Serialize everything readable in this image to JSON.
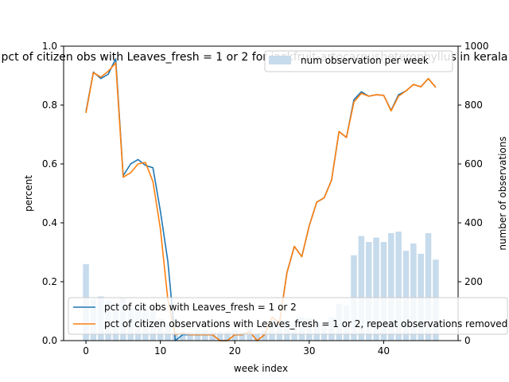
{
  "chart_data": {
    "type": "line",
    "title": "pct of citizen obs with Leaves_fresh = 1 or 2 for jackfruit-artocarpusheterophyllus in kerala",
    "xlabel": "week index",
    "ylabel": "percent",
    "y2label": "number of observations",
    "xlim": [
      -3,
      50
    ],
    "ylim": [
      0,
      1.0
    ],
    "y2lim": [
      0,
      1000
    ],
    "xticks": [
      "0",
      "10",
      "20",
      "30",
      "40"
    ],
    "yticks": [
      "0.0",
      "0.2",
      "0.4",
      "0.6",
      "0.8",
      "1.0"
    ],
    "y2ticks": [
      "0",
      "200",
      "400",
      "600",
      "800",
      "1000"
    ],
    "grid": false,
    "x": [
      0,
      1,
      2,
      3,
      4,
      5,
      6,
      7,
      8,
      9,
      10,
      11,
      12,
      13,
      14,
      15,
      16,
      17,
      18,
      19,
      20,
      21,
      22,
      23,
      24,
      25,
      26,
      27,
      28,
      29,
      30,
      31,
      32,
      33,
      34,
      35,
      36,
      37,
      38,
      39,
      40,
      41,
      42,
      43,
      44,
      45,
      46,
      47
    ],
    "bars": {
      "name": "num observation per week",
      "color": "#c6dbec",
      "values": [
        260,
        140,
        150,
        135,
        115,
        145,
        110,
        125,
        110,
        100,
        75,
        60,
        30,
        30,
        30,
        35,
        35,
        30,
        30,
        30,
        35,
        30,
        40,
        25,
        35,
        70,
        55,
        70,
        60,
        80,
        75,
        65,
        60,
        80,
        125,
        120,
        290,
        355,
        335,
        350,
        335,
        365,
        370,
        305,
        330,
        295,
        365,
        275
      ]
    },
    "series": [
      {
        "name": "pct of cit obs with Leaves_fresh = 1 or 2",
        "color": "#1f77b4",
        "values": [
          0.778,
          0.912,
          0.89,
          0.905,
          0.957,
          0.56,
          0.6,
          0.615,
          0.595,
          0.587,
          0.44,
          0.27,
          0.0,
          0.02,
          0.02,
          0.02,
          0.02,
          0.02,
          0.0,
          0.0,
          0.02,
          0.02,
          0.03,
          0.0,
          0.02,
          0.08,
          0.06,
          0.23,
          0.32,
          0.285,
          0.39,
          0.47,
          0.485,
          0.545,
          0.71,
          0.69,
          0.818,
          0.845,
          0.83,
          0.835,
          0.833,
          0.782,
          0.835,
          0.848,
          0.87,
          0.862,
          0.89,
          0.86
        ]
      },
      {
        "name": "pct of citizen observations with Leaves_fresh = 1 or 2, repeat observations removed",
        "color": "#ff7f0e",
        "values": [
          0.773,
          0.91,
          0.895,
          0.915,
          0.943,
          0.555,
          0.57,
          0.6,
          0.605,
          0.54,
          0.38,
          0.14,
          0.02,
          0.025,
          0.02,
          0.02,
          0.02,
          0.02,
          0.0,
          0.0,
          0.02,
          0.02,
          0.03,
          0.0,
          0.02,
          0.08,
          0.06,
          0.23,
          0.32,
          0.285,
          0.39,
          0.47,
          0.485,
          0.545,
          0.71,
          0.69,
          0.81,
          0.84,
          0.83,
          0.835,
          0.833,
          0.78,
          0.83,
          0.848,
          0.87,
          0.862,
          0.89,
          0.86
        ]
      }
    ]
  }
}
